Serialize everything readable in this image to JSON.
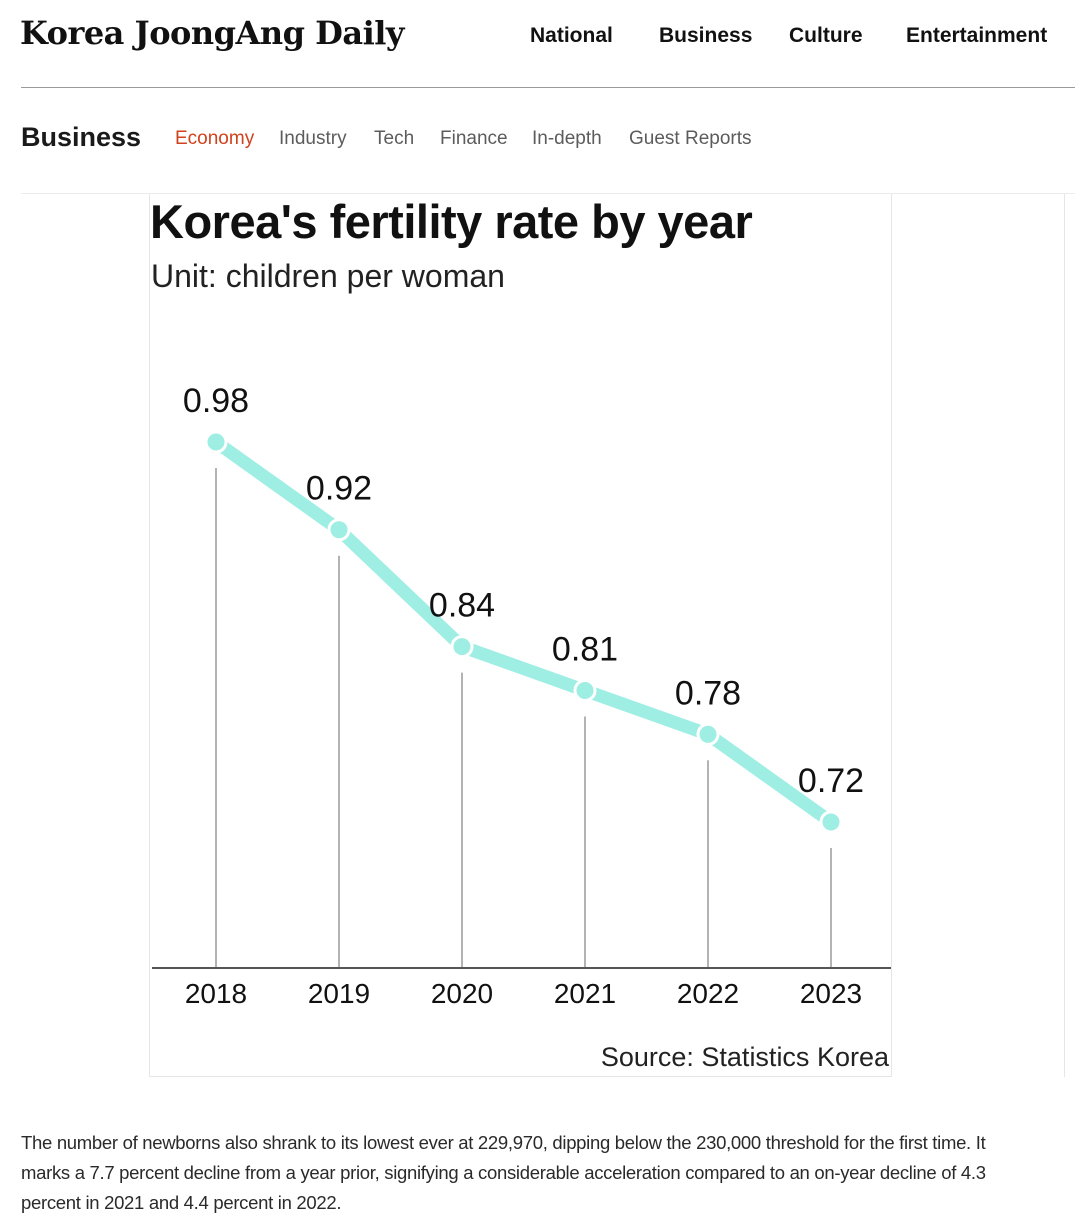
{
  "header": {
    "logo": "Korea JoongAng Daily",
    "nav": [
      "National",
      "Business",
      "Culture",
      "Entertainment"
    ]
  },
  "section": {
    "title": "Business",
    "subnav": [
      {
        "label": "Economy",
        "active": true
      },
      {
        "label": "Industry",
        "active": false
      },
      {
        "label": "Tech",
        "active": false
      },
      {
        "label": "Finance",
        "active": false
      },
      {
        "label": "In-depth",
        "active": false
      },
      {
        "label": "Guest Reports",
        "active": false
      }
    ]
  },
  "colors": {
    "accent": "#d0421b",
    "line": "#9eeee4",
    "drop_line": "#9a9a9a"
  },
  "chart_data": {
    "type": "line",
    "title": "Korea's fertility rate by year",
    "subtitle": "Unit: children per woman",
    "source": "Source: Statistics Korea",
    "categories": [
      "2018",
      "2019",
      "2020",
      "2021",
      "2022",
      "2023"
    ],
    "values": [
      0.98,
      0.92,
      0.84,
      0.81,
      0.78,
      0.72
    ],
    "value_labels": [
      "0.98",
      "0.92",
      "0.84",
      "0.81",
      "0.78",
      "0.72"
    ],
    "xlabel": "",
    "ylabel": "",
    "ylim": [
      0.6,
      1.0
    ],
    "grid": false,
    "legend": "none"
  },
  "article": {
    "paragraph": "The number of newborns also shrank to its lowest ever at 229,970, dipping below the 230,000 threshold for the first time. It marks a 7.7 percent decline from a year prior, signifying a considerable acceleration compared to an on-year decline of 4.3 percent in 2021 and 4.4 percent in 2022."
  }
}
